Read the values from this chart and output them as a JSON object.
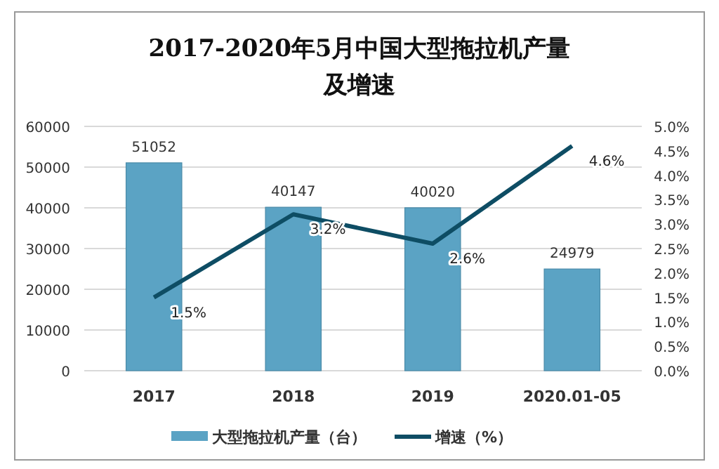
{
  "chart_data": {
    "type": "bar",
    "title": "2017-2020年5月中国大型拖拉机产量及增速",
    "categories": [
      "2017",
      "2018",
      "2019",
      "2020.01-05"
    ],
    "series": [
      {
        "name": "大型拖拉机产量（台）",
        "color": "#5ba3c4",
        "values": [
          51052,
          40147,
          40020,
          24979
        ],
        "value_labels": [
          "51052",
          "40147",
          "40020",
          "24979"
        ]
      },
      {
        "name": "增速（%）",
        "type": "line",
        "axis": "y2",
        "color": "#0e4d64",
        "values": [
          1.5,
          3.2,
          2.6,
          4.6
        ],
        "value_labels": [
          "1.5%",
          "3.2%",
          "2.6%",
          "4.6%"
        ]
      }
    ],
    "ylim": [
      0,
      60000
    ],
    "yticks": [
      0,
      10000,
      20000,
      30000,
      40000,
      50000,
      60000
    ],
    "y2lim": [
      0,
      5
    ],
    "y2ticks": [
      {
        "value": 0,
        "label": "0.0%"
      },
      {
        "value": 0.5,
        "label": "0.5%"
      },
      {
        "value": 1,
        "label": "1.0%"
      },
      {
        "value": 1.5,
        "label": "1.5%"
      },
      {
        "value": 2,
        "label": "2.0%"
      },
      {
        "value": 2.5,
        "label": "2.5%"
      },
      {
        "value": 3,
        "label": "3.0%"
      },
      {
        "value": 3.5,
        "label": "3.5%"
      },
      {
        "value": 4,
        "label": "4.0%"
      },
      {
        "value": 4.5,
        "label": "4.5%"
      },
      {
        "value": 5,
        "label": "5.0%"
      }
    ],
    "grid": "y",
    "legend": "bottom",
    "marker": "none"
  }
}
